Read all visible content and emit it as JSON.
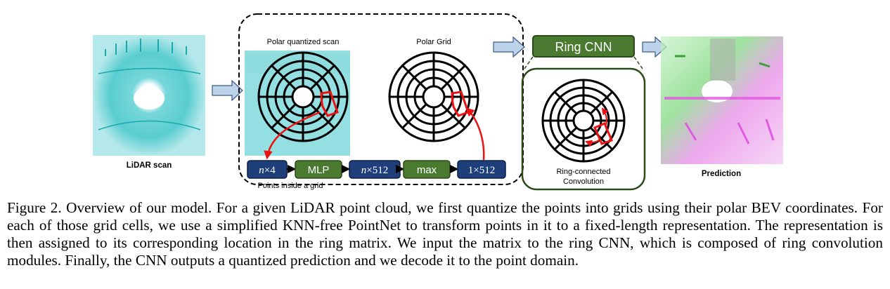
{
  "figure": {
    "labels": {
      "lidar_scan": "LiDAR scan",
      "polar_quantized_scan": "Polar quantized scan",
      "polar_grid": "Polar Grid",
      "ring_cnn": "Ring CNN",
      "ring_connected_line1": "Ring-connected",
      "ring_connected_line2": "Convolution",
      "prediction": "Prediction",
      "points_inside_grid": "Points inside a grid"
    },
    "pipeline": [
      {
        "var": "n",
        "text": "×4"
      },
      {
        "var": "",
        "text": "MLP"
      },
      {
        "var": "n",
        "text": "×512"
      },
      {
        "var": "",
        "text": "max"
      },
      {
        "var": "",
        "text": "1×512"
      }
    ],
    "colors": {
      "blue_box": "#1f3f7a",
      "green_box": "#4a7a30",
      "highlight": "#ee1111",
      "arrow_fill": "#bcd3ea",
      "arrow_stroke": "#3a5a8c",
      "point_cloud": "#2bbcc0"
    }
  },
  "caption": {
    "text": "Figure 2. Overview of our model. For a given LiDAR point cloud, we first quantize the points into grids using their polar BEV coordinates. For each of those grid cells, we use a simplified KNN-free PointNet to transform points in it to a fixed-length representation. The representation is then assigned to its corresponding location in the ring matrix. We input the matrix to the ring CNN, which is composed of ring convolution modules. Finally, the CNN outputs a quantized prediction and we decode it to the point domain."
  }
}
